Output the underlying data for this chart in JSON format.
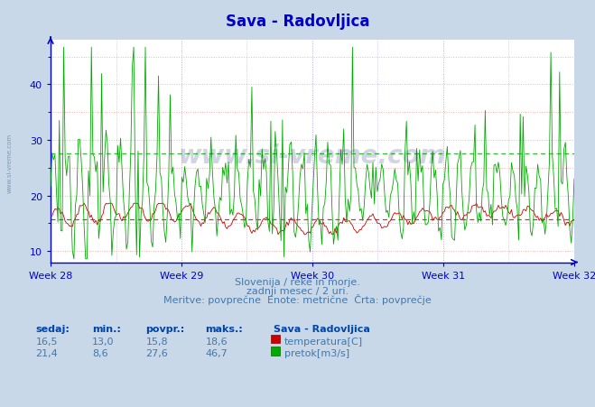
{
  "title": "Sava - Radovljica",
  "title_color": "#0000cc",
  "bg_color": "#c8d8e8",
  "plot_bg_color": "#ffffff",
  "grid_color_h": "#ff9999",
  "grid_color_v": "#9999ff",
  "temp_color": "#cc0000",
  "flow_color": "#00aa00",
  "temp_avg": 15.8,
  "flow_avg": 27.6,
  "ylim_min": 8,
  "ylim_max": 48,
  "yticks": [
    10,
    20,
    30,
    40
  ],
  "week_labels": [
    "Week 28",
    "Week 29",
    "Week 30",
    "Week 31",
    "Week 32"
  ],
  "xlabel_text1": "Slovenija / reke in morje.",
  "xlabel_text2": "zadnji mesec / 2 uri.",
  "xlabel_text3": "Meritve: povprečne  Enote: metrične  Črta: povprečje",
  "footer_label_color": "#0044aa",
  "footer_text_color": "#4477aa",
  "watermark": "www.si-vreme.com",
  "axis_color": "#0000cc",
  "tick_color": "#0000cc",
  "n_points": 360,
  "headers": [
    "sedaj:",
    "min.:",
    "povpr.:",
    "maks.:"
  ],
  "row1": [
    "16,5",
    "13,0",
    "15,8",
    "18,6"
  ],
  "row2": [
    "21,4",
    "8,6",
    "27,6",
    "46,7"
  ],
  "legend_title": "Sava - Radovljica",
  "legend_temp": "temperatura[C]",
  "legend_flow": "pretok[m3/s]",
  "side_watermark": "www.si-vreme.com"
}
